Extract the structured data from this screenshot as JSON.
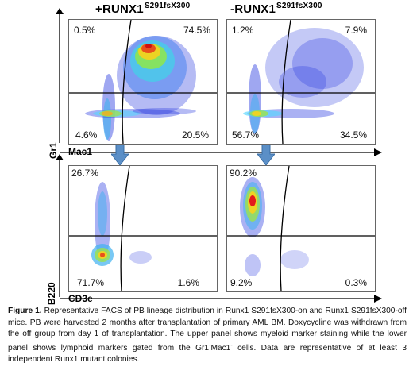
{
  "panels": {
    "top_left": {
      "title": "+RUNX1",
      "title_sup": "S291fsX300",
      "q_ul": "0.5%",
      "q_ur": "74.5%",
      "q_ll": "4.6%",
      "q_lr": "20.5%"
    },
    "top_right": {
      "title": "-RUNX1",
      "title_sup": "S291fsX300",
      "q_ul": "1.2%",
      "q_ur": "7.9%",
      "q_ll": "56.7%",
      "q_lr": "34.5%"
    },
    "bot_left": {
      "q_ul": "26.7%",
      "q_ll": "71.7%",
      "q_lr": "1.6%"
    },
    "bot_right": {
      "q_ul": "90.2%",
      "q_ll": "9.2%",
      "q_lr": "0.3%"
    }
  },
  "axes": {
    "top_y": "Gr1",
    "top_x": "Mac1",
    "bottom_y": "B220",
    "bottom_x": "CD3e"
  },
  "caption": {
    "label": "Figure 1.",
    "part1": " Representative FACS of PB lineage distribution in Runx1 S291fsX300-on and Runx1 S291fsX300-off mice. PB were harvested 2 months after transplantation of primary AML BM. Doxycycline was withdrawn from the off group from day 1 of transplantation.  The upper panel shows myeloid marker staining while the lower panel shows lymphoid markers gated from the Gr1",
    "sup1": "-",
    "mid": "Mac1",
    "sup2": "-",
    "part2": " cells. Data are representative of at least 3 independent Runx1 mutant colonies."
  },
  "colors": {
    "arrow": "#5b8fc7",
    "arrow_edge": "#3a6ea5",
    "gate_line": "#000000",
    "density_low": "#1a1ad8",
    "density_high": "#e31a1c"
  }
}
